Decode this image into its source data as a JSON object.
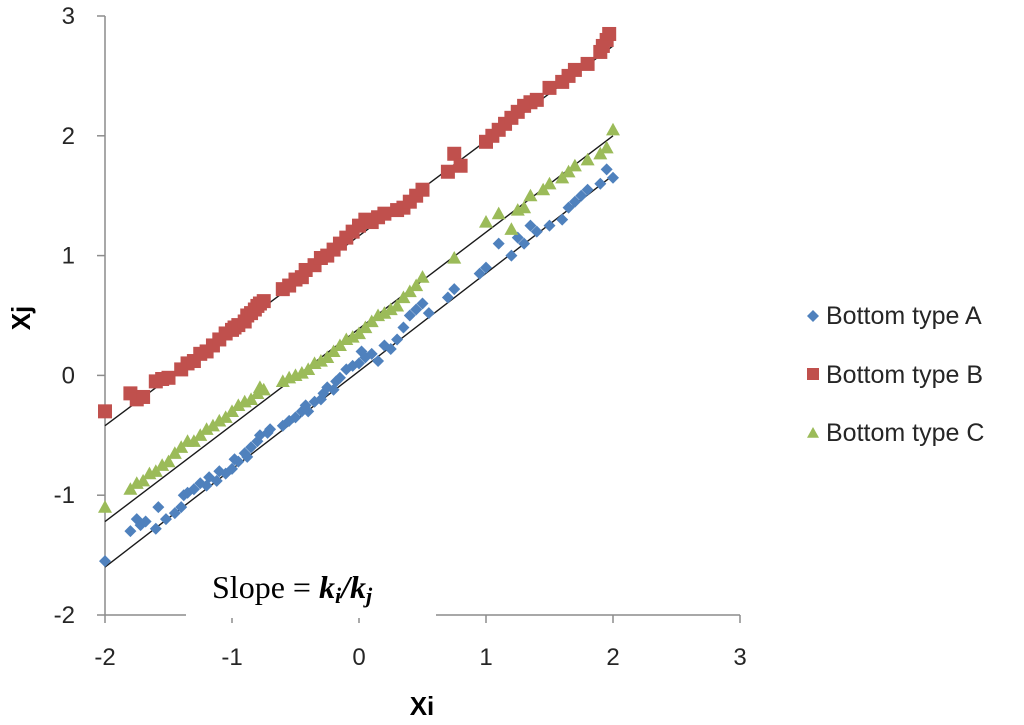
{
  "chart_data": {
    "type": "scatter",
    "title": "",
    "xlabel": "Xi",
    "ylabel": "Xj",
    "xlim": [
      -2,
      3
    ],
    "ylim": [
      -2,
      3
    ],
    "xticks": [
      "-2",
      "-1",
      "0",
      "1",
      "2",
      "3"
    ],
    "yticks": [
      "-2",
      "-1",
      "0",
      "1",
      "2",
      "3"
    ],
    "grid": false,
    "legend_position": "right",
    "annotation": {
      "prefix": "Slope = ",
      "numerator_var": "k",
      "numerator_sub": "i",
      "separator": "/",
      "denominator_var": "k",
      "denominator_sub": "j"
    },
    "series": [
      {
        "name": "Bottom type A",
        "marker": "diamond",
        "color": "#4f81bd",
        "trend": [
          [
            -2,
            -1.6
          ],
          [
            2,
            1.67
          ]
        ],
        "x": [
          -2.0,
          -1.8,
          -1.75,
          -1.72,
          -1.68,
          -1.6,
          -1.58,
          -1.52,
          -1.45,
          -1.4,
          -1.38,
          -1.35,
          -1.3,
          -1.25,
          -1.2,
          -1.18,
          -1.12,
          -1.1,
          -1.05,
          -1.0,
          -0.98,
          -0.95,
          -0.9,
          -0.88,
          -0.85,
          -0.8,
          -0.78,
          -0.72,
          -0.7,
          -0.6,
          -0.55,
          -0.5,
          -0.45,
          -0.42,
          -0.4,
          -0.35,
          -0.3,
          -0.28,
          -0.25,
          -0.2,
          -0.18,
          -0.15,
          -0.1,
          -0.05,
          0.0,
          0.02,
          0.05,
          0.1,
          0.15,
          0.2,
          0.25,
          0.3,
          0.35,
          0.4,
          0.45,
          0.5,
          0.55,
          0.7,
          0.75,
          0.95,
          1.0,
          1.1,
          1.2,
          1.25,
          1.3,
          1.35,
          1.4,
          1.5,
          1.6,
          1.65,
          1.7,
          1.75,
          1.8,
          1.9,
          1.95,
          2.0
        ],
        "y": [
          -1.55,
          -1.3,
          -1.2,
          -1.25,
          -1.22,
          -1.28,
          -1.1,
          -1.2,
          -1.15,
          -1.1,
          -1.0,
          -0.98,
          -0.95,
          -0.9,
          -0.92,
          -0.85,
          -0.88,
          -0.8,
          -0.82,
          -0.78,
          -0.7,
          -0.72,
          -0.65,
          -0.68,
          -0.6,
          -0.55,
          -0.5,
          -0.48,
          -0.45,
          -0.42,
          -0.38,
          -0.35,
          -0.3,
          -0.25,
          -0.3,
          -0.22,
          -0.2,
          -0.15,
          -0.1,
          -0.12,
          -0.05,
          -0.02,
          0.05,
          0.08,
          0.1,
          0.2,
          0.15,
          0.18,
          0.12,
          0.25,
          0.22,
          0.3,
          0.4,
          0.5,
          0.55,
          0.6,
          0.52,
          0.65,
          0.72,
          0.85,
          0.9,
          1.1,
          1.0,
          1.15,
          1.1,
          1.25,
          1.2,
          1.25,
          1.3,
          1.4,
          1.45,
          1.5,
          1.55,
          1.6,
          1.72,
          1.65
        ]
      },
      {
        "name": "Bottom type B",
        "marker": "square",
        "color": "#c0504d",
        "trend": [
          [
            -2,
            -0.42
          ],
          [
            2,
            2.75
          ]
        ],
        "x": [
          -2.0,
          -1.8,
          -1.75,
          -1.7,
          -1.6,
          -1.55,
          -1.5,
          -1.4,
          -1.35,
          -1.3,
          -1.25,
          -1.2,
          -1.15,
          -1.1,
          -1.05,
          -1.0,
          -0.98,
          -0.95,
          -0.9,
          -0.88,
          -0.85,
          -0.82,
          -0.8,
          -0.78,
          -0.75,
          -0.6,
          -0.55,
          -0.5,
          -0.45,
          -0.42,
          -0.35,
          -0.3,
          -0.25,
          -0.2,
          -0.15,
          -0.1,
          -0.05,
          0.0,
          0.05,
          0.1,
          0.15,
          0.2,
          0.3,
          0.35,
          0.4,
          0.45,
          0.5,
          0.7,
          0.75,
          0.8,
          1.0,
          1.05,
          1.1,
          1.15,
          1.2,
          1.25,
          1.3,
          1.35,
          1.4,
          1.5,
          1.6,
          1.65,
          1.7,
          1.8,
          1.9,
          1.92,
          1.95,
          1.97
        ],
        "y": [
          -0.3,
          -0.15,
          -0.2,
          -0.18,
          -0.05,
          -0.03,
          -0.02,
          0.05,
          0.1,
          0.12,
          0.18,
          0.2,
          0.25,
          0.3,
          0.35,
          0.38,
          0.4,
          0.42,
          0.45,
          0.5,
          0.52,
          0.55,
          0.58,
          0.6,
          0.62,
          0.72,
          0.75,
          0.8,
          0.82,
          0.88,
          0.92,
          0.98,
          1.0,
          1.05,
          1.1,
          1.15,
          1.2,
          1.25,
          1.3,
          1.28,
          1.32,
          1.35,
          1.38,
          1.4,
          1.45,
          1.5,
          1.55,
          1.7,
          1.85,
          1.75,
          1.95,
          2.0,
          2.05,
          2.1,
          2.15,
          2.2,
          2.25,
          2.28,
          2.3,
          2.4,
          2.45,
          2.5,
          2.55,
          2.6,
          2.7,
          2.75,
          2.8,
          2.85
        ]
      },
      {
        "name": "Bottom type C",
        "marker": "triangle",
        "color": "#9bbb59",
        "trend": [
          [
            -2,
            -1.22
          ],
          [
            2,
            2.0
          ]
        ],
        "x": [
          -2.0,
          -1.8,
          -1.75,
          -1.7,
          -1.65,
          -1.6,
          -1.55,
          -1.5,
          -1.45,
          -1.4,
          -1.35,
          -1.3,
          -1.25,
          -1.2,
          -1.15,
          -1.1,
          -1.05,
          -1.0,
          -0.95,
          -0.9,
          -0.85,
          -0.8,
          -0.78,
          -0.75,
          -0.6,
          -0.55,
          -0.5,
          -0.45,
          -0.4,
          -0.35,
          -0.3,
          -0.25,
          -0.2,
          -0.15,
          -0.1,
          -0.05,
          0.0,
          0.05,
          0.1,
          0.15,
          0.2,
          0.25,
          0.3,
          0.35,
          0.4,
          0.45,
          0.5,
          0.75,
          1.0,
          1.1,
          1.2,
          1.25,
          1.3,
          1.35,
          1.45,
          1.5,
          1.6,
          1.65,
          1.7,
          1.8,
          1.9,
          1.95,
          2.0
        ],
        "y": [
          -1.1,
          -0.95,
          -0.9,
          -0.88,
          -0.82,
          -0.8,
          -0.75,
          -0.72,
          -0.65,
          -0.6,
          -0.55,
          -0.55,
          -0.5,
          -0.45,
          -0.42,
          -0.38,
          -0.35,
          -0.3,
          -0.25,
          -0.22,
          -0.2,
          -0.15,
          -0.1,
          -0.12,
          -0.05,
          -0.02,
          0.0,
          0.02,
          0.05,
          0.1,
          0.12,
          0.15,
          0.2,
          0.25,
          0.3,
          0.32,
          0.35,
          0.4,
          0.45,
          0.5,
          0.52,
          0.55,
          0.58,
          0.65,
          0.7,
          0.75,
          0.82,
          0.98,
          1.28,
          1.35,
          1.22,
          1.38,
          1.4,
          1.5,
          1.55,
          1.6,
          1.65,
          1.7,
          1.75,
          1.8,
          1.85,
          1.9,
          2.05
        ]
      }
    ]
  }
}
